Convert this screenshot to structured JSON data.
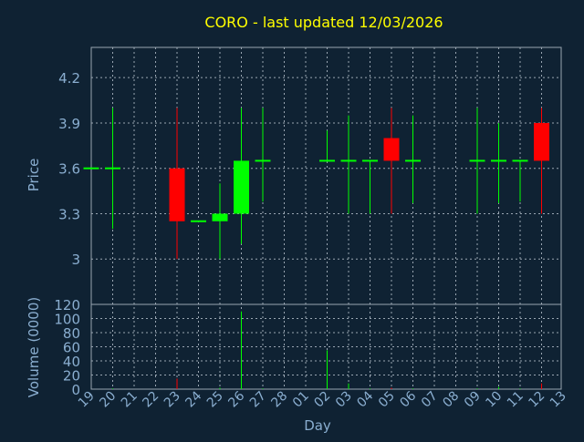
{
  "chart_data": {
    "type": "candlestick",
    "title": "CORO - last updated 12/03/2026",
    "xlabel": "Day",
    "colors": {
      "background": "#0f2233",
      "title": "#ffff00",
      "axis_text": "#8aaed0",
      "grid": "#9aa6b2",
      "up": "#00ff00",
      "down": "#ff0000"
    },
    "x_ticks": [
      "19",
      "20",
      "21",
      "22",
      "23",
      "24",
      "25",
      "26",
      "27",
      "28",
      "01",
      "02",
      "03",
      "04",
      "05",
      "06",
      "07",
      "08",
      "09",
      "10",
      "11",
      "12",
      "13"
    ],
    "price": {
      "ylabel": "Price",
      "ylim": [
        2.7,
        4.4
      ],
      "y_ticks": [
        3,
        3.3,
        3.6,
        3.9,
        4.2
      ],
      "y_tick_labels": [
        "3",
        "3.3",
        "3.6",
        "3.9",
        "4.2"
      ],
      "grid": true
    },
    "volume": {
      "ylabel": "Volume (0000)",
      "ylim": [
        0,
        120
      ],
      "y_ticks": [
        0,
        20,
        40,
        60,
        80,
        100,
        120
      ],
      "y_tick_labels": [
        "0",
        "20",
        "40",
        "60",
        "80",
        "100",
        "120"
      ],
      "grid": true
    },
    "candles": [
      {
        "day": "19",
        "open": 3.6,
        "high": 3.6,
        "low": 3.6,
        "close": 3.6,
        "volume": 0
      },
      {
        "day": "20",
        "open": 3.6,
        "high": 4.0,
        "low": 3.2,
        "close": 3.6,
        "volume": 1
      },
      {
        "day": "23",
        "open": 3.6,
        "high": 4.0,
        "low": 3.0,
        "close": 3.25,
        "volume": 15
      },
      {
        "day": "24",
        "open": 3.25,
        "high": 3.25,
        "low": 3.25,
        "close": 3.25,
        "volume": 0
      },
      {
        "day": "25",
        "open": 3.25,
        "high": 3.5,
        "low": 3.0,
        "close": 3.3,
        "volume": 2
      },
      {
        "day": "26",
        "open": 3.3,
        "high": 4.0,
        "low": 3.1,
        "close": 3.65,
        "volume": 110
      },
      {
        "day": "27",
        "open": 3.65,
        "high": 4.0,
        "low": 3.38,
        "close": 3.65,
        "volume": 1
      },
      {
        "day": "02",
        "open": 3.65,
        "high": 3.85,
        "low": 3.65,
        "close": 3.65,
        "volume": 55
      },
      {
        "day": "03",
        "open": 3.65,
        "high": 3.95,
        "low": 3.3,
        "close": 3.65,
        "volume": 8
      },
      {
        "day": "04",
        "open": 3.65,
        "high": 3.65,
        "low": 3.3,
        "close": 3.65,
        "volume": 1
      },
      {
        "day": "05",
        "open": 3.8,
        "high": 4.0,
        "low": 3.3,
        "close": 3.65,
        "volume": 2
      },
      {
        "day": "06",
        "open": 3.65,
        "high": 3.95,
        "low": 3.37,
        "close": 3.65,
        "volume": 1
      },
      {
        "day": "09",
        "open": 3.65,
        "high": 4.0,
        "low": 3.3,
        "close": 3.65,
        "volume": 1
      },
      {
        "day": "10",
        "open": 3.65,
        "high": 3.9,
        "low": 3.37,
        "close": 3.65,
        "volume": 3
      },
      {
        "day": "11",
        "open": 3.65,
        "high": 3.65,
        "low": 3.38,
        "close": 3.65,
        "volume": 1
      },
      {
        "day": "12",
        "open": 3.9,
        "high": 4.0,
        "low": 3.3,
        "close": 3.65,
        "volume": 8
      }
    ]
  }
}
